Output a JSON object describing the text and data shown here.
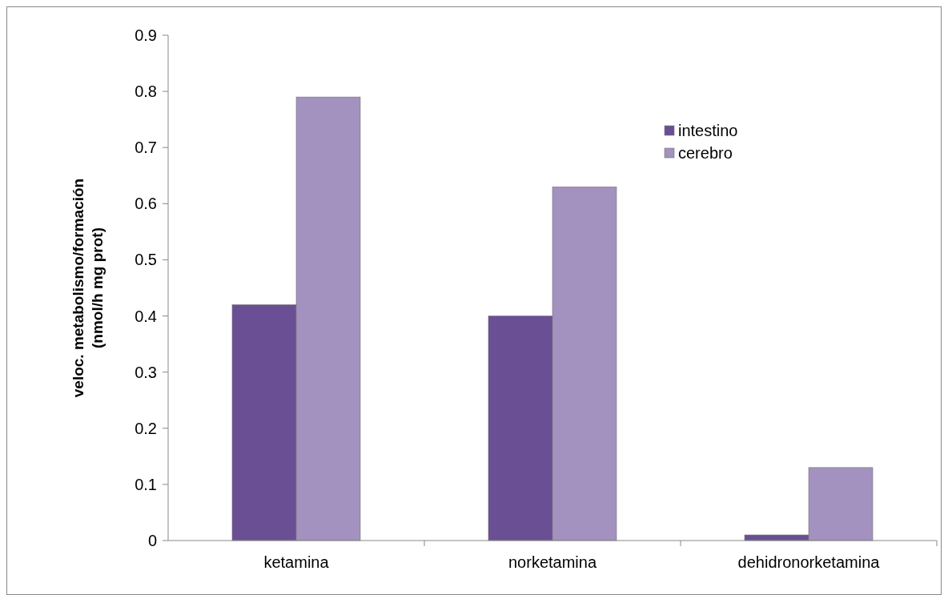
{
  "chart_data": {
    "type": "bar",
    "ylabel": "veloc. metabolismo/formación\n(nmol/h mg prot)",
    "categories": [
      "ketamina",
      "norketamina",
      "dehidronorketamina"
    ],
    "series": [
      {
        "name": "intestino",
        "color": "#6a4f94",
        "values": [
          0.42,
          0.4,
          0.01
        ]
      },
      {
        "name": "cerebro",
        "color": "#a391bf",
        "values": [
          0.79,
          0.63,
          0.13
        ]
      }
    ],
    "ylim": [
      0,
      0.9
    ],
    "yticks": [
      0,
      0.1,
      0.2,
      0.3,
      0.4,
      0.5,
      0.6,
      0.7,
      0.8,
      0.9
    ],
    "grid": false,
    "legend": "top right"
  }
}
